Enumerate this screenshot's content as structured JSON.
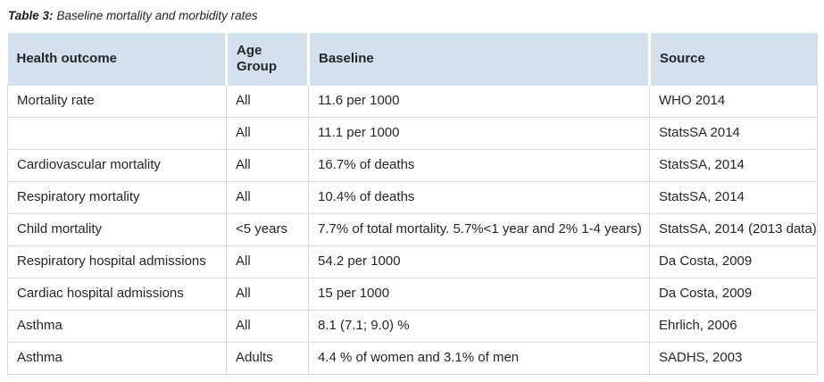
{
  "caption": {
    "label": "Table 3:",
    "text": "Baseline mortality and morbidity rates"
  },
  "table": {
    "columns": [
      "Health outcome",
      "Age Group",
      "Baseline",
      "Source"
    ],
    "rows": [
      {
        "outcome": "Mortality rate",
        "age_group": "All",
        "baseline": "11.6 per 1000",
        "source": "WHO 2014"
      },
      {
        "outcome": "",
        "age_group": "All",
        "baseline": "11.1 per 1000",
        "source": "StatsSA 2014"
      },
      {
        "outcome": "Cardiovascular mortality",
        "age_group": "All",
        "baseline": "16.7% of deaths",
        "source": "StatsSA, 2014"
      },
      {
        "outcome": "Respiratory mortality",
        "age_group": "All",
        "baseline": "10.4% of deaths",
        "source": "StatsSA, 2014"
      },
      {
        "outcome": "Child mortality",
        "age_group": "<5 years",
        "baseline": "7.7% of total mortality. 5.7%<1 year and 2% 1-4 years)",
        "source": "StatsSA, 2014 (2013 data)"
      },
      {
        "outcome": "Respiratory hospital admissions",
        "age_group": "All",
        "baseline": "54.2 per 1000",
        "source": "Da Costa, 2009"
      },
      {
        "outcome": "Cardiac hospital admissions",
        "age_group": "All",
        "baseline": "15 per 1000",
        "source": "Da Costa, 2009"
      },
      {
        "outcome": "Asthma",
        "age_group": "All",
        "baseline": "8.1 (7.1; 9.0) %",
        "source": "Ehrlich, 2006"
      },
      {
        "outcome": "Asthma",
        "age_group": "Adults",
        "baseline": "4.4 % of women and 3.1% of men",
        "source": "SADHS, 2003"
      }
    ]
  },
  "colors": {
    "header_bg": "#d3e1ef",
    "border": "#dbdbdb",
    "text": "#262626"
  }
}
